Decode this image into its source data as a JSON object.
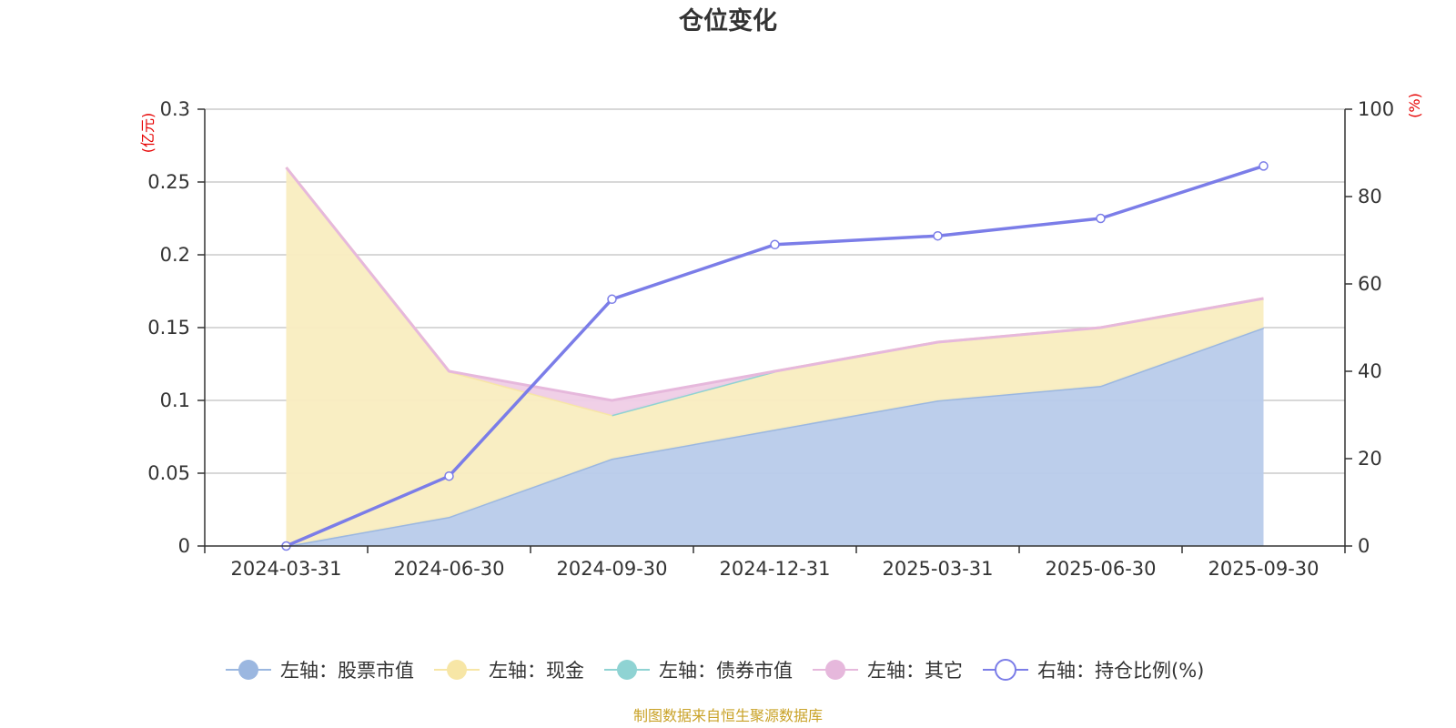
{
  "chart_data": {
    "type": "area",
    "title": "仓位变化",
    "categories": [
      "2024-03-31",
      "2024-06-30",
      "2024-09-30",
      "2024-12-31",
      "2025-03-31",
      "2025-06-30",
      "2025-09-30"
    ],
    "left_axis": {
      "unit": "(亿元)",
      "ylim": [
        0,
        0.3
      ],
      "ticks": [
        0,
        0.05,
        0.1,
        0.15,
        0.2,
        0.25,
        0.3
      ],
      "tick_labels": [
        "0",
        "0.05",
        "0.1",
        "0.15",
        "0.2",
        "0.25",
        "0.3"
      ]
    },
    "right_axis": {
      "unit": "(%)",
      "ylim": [
        0,
        100
      ],
      "ticks": [
        0,
        20,
        40,
        60,
        80,
        100
      ],
      "tick_labels": [
        "0",
        "20",
        "40",
        "60",
        "80",
        "100"
      ]
    },
    "series": [
      {
        "name": "左轴：股票市值",
        "axis": "left",
        "type": "area",
        "color": "#9bb7e0",
        "fill": "#b8cbea",
        "values": [
          0,
          0.02,
          0.06,
          0.08,
          0.1,
          0.11,
          0.15
        ]
      },
      {
        "name": "左轴：现金",
        "axis": "left",
        "type": "area",
        "color": "#f7e6a6",
        "fill": "#f9edc0",
        "values": [
          0.26,
          0.1,
          0.03,
          0.04,
          0.04,
          0.04,
          0.02
        ]
      },
      {
        "name": "左轴：债券市值",
        "axis": "left",
        "type": "area",
        "color": "#8fd3d3",
        "fill": "#bfe6e6",
        "values": [
          null,
          null,
          0,
          0,
          null,
          null,
          null
        ]
      },
      {
        "name": "左轴：其它",
        "axis": "left",
        "type": "area",
        "color": "#e6b8dc",
        "fill": "#efcde6",
        "values": [
          0,
          0,
          0.01,
          0,
          0,
          0,
          0
        ]
      },
      {
        "name": "右轴：持仓比例(%)",
        "axis": "right",
        "type": "line",
        "color": "#7b7de8",
        "values": [
          0,
          16,
          56.5,
          69,
          71,
          75,
          87
        ]
      }
    ],
    "source": "制图数据来自恒生聚源数据库"
  }
}
